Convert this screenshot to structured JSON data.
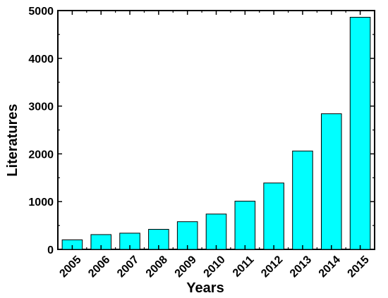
{
  "chart_data": {
    "type": "bar",
    "title": "",
    "xlabel": "Years",
    "ylabel": "Literatures",
    "categories": [
      "2005",
      "2006",
      "2007",
      "2008",
      "2009",
      "2010",
      "2011",
      "2012",
      "2013",
      "2014",
      "2015"
    ],
    "values": [
      200,
      310,
      340,
      420,
      580,
      740,
      1010,
      1390,
      2060,
      2840,
      4860
    ],
    "ylim": [
      0,
      5000
    ],
    "yticks": [
      0,
      1000,
      2000,
      3000,
      4000,
      5000
    ],
    "bar_color": "#00FFFF",
    "grid": false,
    "legend": "none"
  }
}
